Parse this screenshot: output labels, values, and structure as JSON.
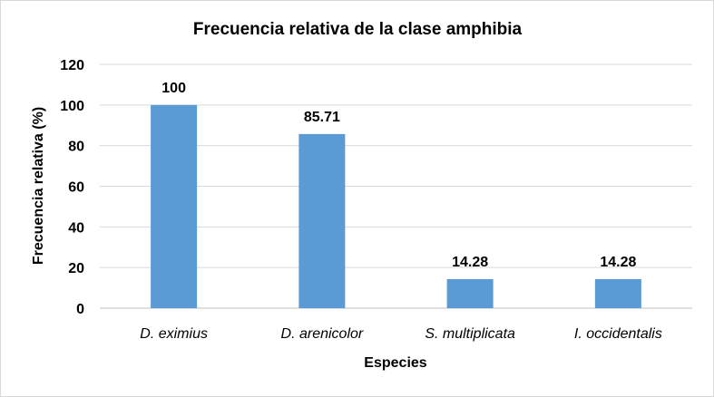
{
  "chart_data": {
    "type": "bar",
    "title": "Frecuencia relativa de la clase amphibia",
    "xlabel": "Especies",
    "ylabel": "Frecuencia relativa (%)",
    "categories": [
      "D. eximius",
      "D. arenicolor",
      "S. multiplicata",
      "I. occidentalis"
    ],
    "values": [
      100,
      85.71,
      14.28,
      14.28
    ],
    "data_labels": [
      "100",
      "85.71",
      "14.28",
      "14.28"
    ],
    "ylim": [
      0,
      120
    ],
    "yticks": [
      0,
      20,
      40,
      60,
      80,
      100,
      120
    ],
    "grid": true,
    "legend": "none",
    "colors": {
      "bar": "#5b9bd5",
      "grid": "#d9d9d9",
      "axis": "#bfbfbf"
    }
  }
}
